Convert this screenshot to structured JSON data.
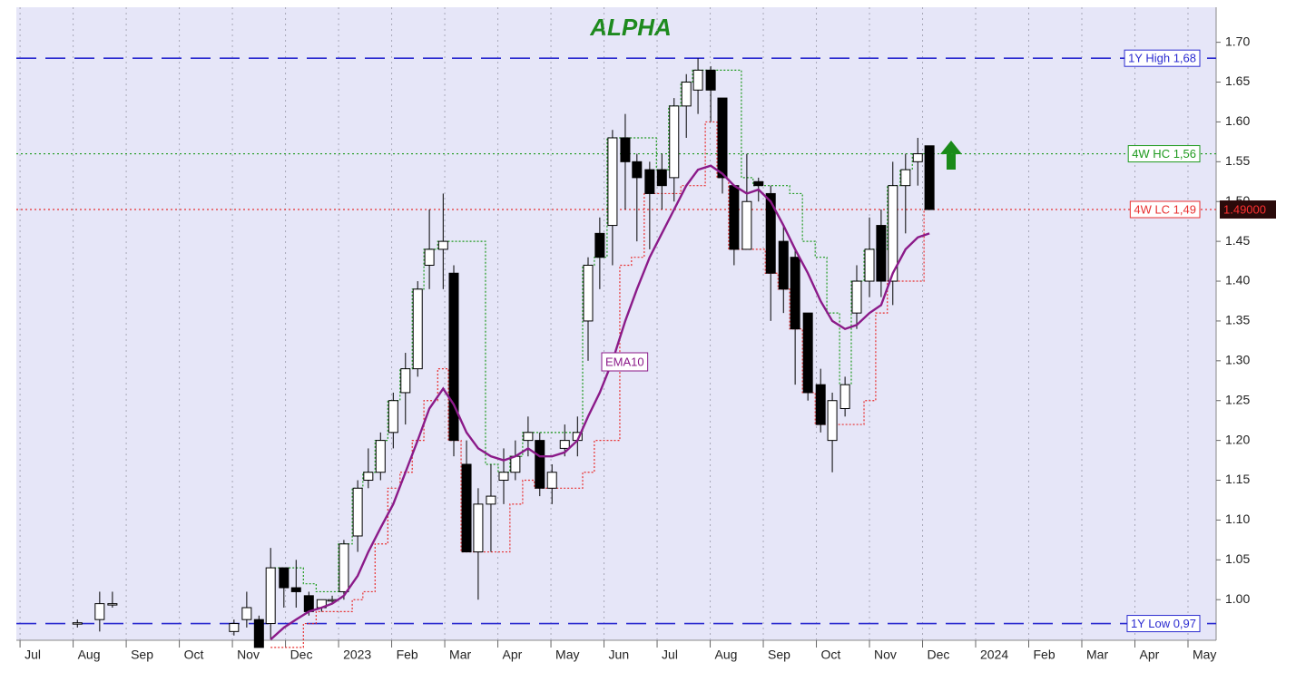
{
  "chart_data": {
    "type": "candlestick",
    "title": "ALPHA",
    "x": [
      1.08,
      1.5,
      1.74,
      4.03,
      4.27,
      4.5,
      4.72,
      4.97,
      5.2,
      5.44,
      5.68,
      5.88,
      6.1,
      6.36,
      6.56,
      6.79,
      7.03,
      7.26,
      7.49,
      7.71,
      7.97,
      8.17,
      8.41,
      8.63,
      8.87,
      9.11,
      9.33,
      9.57,
      9.79,
      10.02,
      10.26,
      10.5,
      10.7,
      10.92,
      11.16,
      11.4,
      11.62,
      11.86,
      12.09,
      12.32,
      12.55,
      12.77,
      13.01,
      13.23,
      13.45,
      13.69,
      13.91,
      14.14,
      14.38,
      14.6,
      14.84,
      15.08,
      15.3,
      15.54,
      15.76,
      16.0,
      16.22,
      16.44,
      16.68,
      16.91,
      17.13
    ],
    "open": [
      0.97,
      0.975,
      0.995,
      0.96,
      0.975,
      0.975,
      0.97,
      1.04,
      1.015,
      1.005,
      0.99,
      1.0,
      1.01,
      1.08,
      1.15,
      1.16,
      1.21,
      1.26,
      1.29,
      1.42,
      1.44,
      1.41,
      1.17,
      1.06,
      1.12,
      1.15,
      1.16,
      1.2,
      1.2,
      1.14,
      1.19,
      1.2,
      1.35,
      1.46,
      1.47,
      1.58,
      1.55,
      1.54,
      1.54,
      1.53,
      1.62,
      1.64,
      1.665,
      1.63,
      1.52,
      1.44,
      1.525,
      1.51,
      1.45,
      1.43,
      1.36,
      1.27,
      1.2,
      1.24,
      1.36,
      1.4,
      1.47,
      1.4,
      1.52,
      1.55,
      1.57
    ],
    "high": [
      0.975,
      1.01,
      1.01,
      0.975,
      1.01,
      0.98,
      1.065,
      1.04,
      1.05,
      1.01,
      1.0,
      1.005,
      1.075,
      1.15,
      1.19,
      1.21,
      1.26,
      1.31,
      1.4,
      1.49,
      1.51,
      1.42,
      1.2,
      1.14,
      1.17,
      1.19,
      1.2,
      1.23,
      1.21,
      1.17,
      1.22,
      1.23,
      1.43,
      1.48,
      1.59,
      1.61,
      1.56,
      1.55,
      1.56,
      1.63,
      1.66,
      1.68,
      1.67,
      1.63,
      1.52,
      1.56,
      1.53,
      1.52,
      1.47,
      1.44,
      1.36,
      1.29,
      1.26,
      1.28,
      1.42,
      1.48,
      1.49,
      1.55,
      1.56,
      1.58,
      1.57
    ],
    "low": [
      0.965,
      0.96,
      0.99,
      0.955,
      0.965,
      0.94,
      0.95,
      0.99,
      0.99,
      0.98,
      0.985,
      0.995,
      1.0,
      1.06,
      1.14,
      1.15,
      1.19,
      1.22,
      1.28,
      1.39,
      1.39,
      1.18,
      1.06,
      1.0,
      1.06,
      1.12,
      1.15,
      1.18,
      1.13,
      1.12,
      1.18,
      1.18,
      1.3,
      1.39,
      1.42,
      1.49,
      1.45,
      1.44,
      1.49,
      1.5,
      1.58,
      1.61,
      1.6,
      1.51,
      1.42,
      1.44,
      1.5,
      1.35,
      1.36,
      1.27,
      1.25,
      1.21,
      1.16,
      1.23,
      1.34,
      1.38,
      1.38,
      1.37,
      1.46,
      1.52,
      1.49
    ],
    "close": [
      0.971,
      0.995,
      0.995,
      0.97,
      0.99,
      0.94,
      1.04,
      1.015,
      1.01,
      0.985,
      1.0,
      1.0,
      1.07,
      1.14,
      1.16,
      1.2,
      1.25,
      1.29,
      1.39,
      1.44,
      1.45,
      1.2,
      1.06,
      1.12,
      1.13,
      1.16,
      1.18,
      1.21,
      1.14,
      1.16,
      1.2,
      1.21,
      1.42,
      1.43,
      1.58,
      1.55,
      1.53,
      1.51,
      1.52,
      1.62,
      1.65,
      1.665,
      1.64,
      1.53,
      1.44,
      1.5,
      1.52,
      1.41,
      1.39,
      1.34,
      1.26,
      1.22,
      1.25,
      1.27,
      1.4,
      1.44,
      1.4,
      1.52,
      1.54,
      1.56,
      1.49
    ],
    "up_color": "#ffffff",
    "down_color": "#000000",
    "series": [
      {
        "name": "EMA10",
        "color": "#8b1a89",
        "values": [
          null,
          null,
          null,
          null,
          null,
          null,
          0.95,
          0.965,
          0.975,
          0.985,
          0.99,
          0.995,
          1.005,
          1.03,
          1.06,
          1.09,
          1.12,
          1.16,
          1.2,
          1.24,
          1.265,
          1.245,
          1.21,
          1.19,
          1.18,
          1.175,
          1.18,
          1.19,
          1.18,
          1.18,
          1.185,
          1.2,
          1.23,
          1.26,
          1.3,
          1.35,
          1.39,
          1.43,
          1.46,
          1.49,
          1.52,
          1.54,
          1.545,
          1.535,
          1.52,
          1.51,
          1.515,
          1.5,
          1.47,
          1.44,
          1.41,
          1.375,
          1.35,
          1.34,
          1.345,
          1.36,
          1.37,
          1.41,
          1.44,
          1.455,
          1.46
        ]
      }
    ],
    "bands": [
      {
        "color": "#1e9a1e",
        "values": [
          null,
          null,
          null,
          null,
          null,
          null,
          1.04,
          1.04,
          1.04,
          1.02,
          1.01,
          1.01,
          1.07,
          1.14,
          1.16,
          1.2,
          1.25,
          1.29,
          1.39,
          1.44,
          1.45,
          1.45,
          1.45,
          1.45,
          1.17,
          1.16,
          1.18,
          1.21,
          1.21,
          1.21,
          1.21,
          1.21,
          1.42,
          1.43,
          1.58,
          1.58,
          1.58,
          1.58,
          1.54,
          1.62,
          1.65,
          1.665,
          1.665,
          1.665,
          1.665,
          1.53,
          1.52,
          1.52,
          1.52,
          1.51,
          1.45,
          1.43,
          1.36,
          1.27,
          1.4,
          1.44,
          1.44,
          1.52,
          1.54,
          1.56,
          1.56
        ]
      },
      {
        "color": "#e83030",
        "values": [
          null,
          null,
          null,
          null,
          null,
          null,
          0.94,
          0.94,
          0.94,
          0.97,
          0.985,
          0.985,
          0.985,
          1.0,
          1.01,
          1.07,
          1.14,
          1.16,
          1.2,
          1.25,
          1.29,
          1.2,
          1.06,
          1.06,
          1.06,
          1.06,
          1.12,
          1.15,
          1.14,
          1.14,
          1.14,
          1.14,
          1.16,
          1.2,
          1.2,
          1.42,
          1.43,
          1.51,
          1.51,
          1.51,
          1.52,
          1.52,
          1.6,
          1.53,
          1.44,
          1.44,
          1.44,
          1.41,
          1.39,
          1.34,
          1.26,
          1.22,
          1.22,
          1.22,
          1.22,
          1.25,
          1.36,
          1.4,
          1.4,
          1.4,
          1.49
        ]
      }
    ],
    "levels": [
      {
        "value": 1.68,
        "label": "1Y High 1,68",
        "color": "#2b2bd0",
        "style": "dashed"
      },
      {
        "value": 1.56,
        "label": "4W HC 1,56",
        "color": "#1e9a1e",
        "style": "dotted"
      },
      {
        "value": 1.49,
        "label": "4W LC 1,49",
        "color": "#e83030",
        "style": "dotted"
      },
      {
        "value": 0.97,
        "label": "1Y Low 0,97",
        "color": "#2b2bd0",
        "style": "dashed"
      }
    ],
    "last_price": {
      "value": 1.49,
      "label": "1.49000"
    },
    "xlim": [
      -0.07,
      22.53
    ],
    "xticks": [
      {
        "value": 0,
        "label": "Jul"
      },
      {
        "value": 1,
        "label": "Aug"
      },
      {
        "value": 2,
        "label": "Sep"
      },
      {
        "value": 3,
        "label": "Oct"
      },
      {
        "value": 4,
        "label": "Nov"
      },
      {
        "value": 5,
        "label": "Dec"
      },
      {
        "value": 6,
        "label": "2023"
      },
      {
        "value": 7,
        "label": "Feb"
      },
      {
        "value": 8,
        "label": "Mar"
      },
      {
        "value": 9,
        "label": "Apr"
      },
      {
        "value": 10,
        "label": "May"
      },
      {
        "value": 11,
        "label": "Jun"
      },
      {
        "value": 12,
        "label": "Jul"
      },
      {
        "value": 13,
        "label": "Aug"
      },
      {
        "value": 14,
        "label": "Sep"
      },
      {
        "value": 15,
        "label": "Oct"
      },
      {
        "value": 16,
        "label": "Nov"
      },
      {
        "value": 17,
        "label": "Dec"
      },
      {
        "value": 18,
        "label": "2024"
      },
      {
        "value": 19,
        "label": "Feb"
      },
      {
        "value": 20,
        "label": "Mar"
      },
      {
        "value": 21,
        "label": "Apr"
      },
      {
        "value": 22,
        "label": "May"
      }
    ],
    "ylim": [
      0.949,
      1.744
    ],
    "yticks": [
      {
        "value": 1.0,
        "label": "1.00"
      },
      {
        "value": 1.05,
        "label": "1.05"
      },
      {
        "value": 1.1,
        "label": "1.10"
      },
      {
        "value": 1.15,
        "label": "1.15"
      },
      {
        "value": 1.2,
        "label": "1.20"
      },
      {
        "value": 1.25,
        "label": "1.25"
      },
      {
        "value": 1.3,
        "label": "1.30"
      },
      {
        "value": 1.35,
        "label": "1.35"
      },
      {
        "value": 1.4,
        "label": "1.40"
      },
      {
        "value": 1.45,
        "label": "1.45"
      },
      {
        "value": 1.5,
        "label": "1.50"
      },
      {
        "value": 1.55,
        "label": "1.55"
      },
      {
        "value": 1.6,
        "label": "1.60"
      },
      {
        "value": 1.65,
        "label": "1.65"
      },
      {
        "value": 1.7,
        "label": "1.70"
      }
    ],
    "grid": true
  }
}
